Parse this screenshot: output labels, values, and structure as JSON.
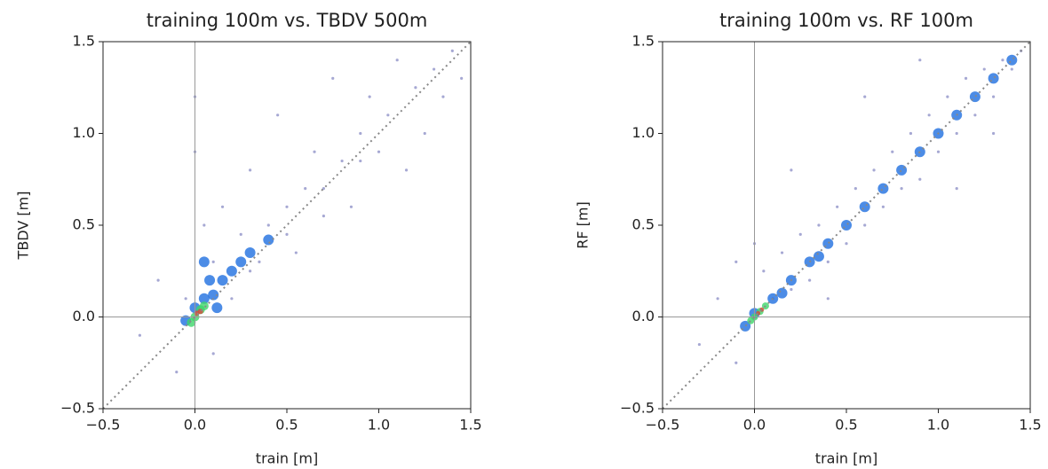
{
  "chart_data": [
    {
      "type": "scatter",
      "title": "training 100m vs. TBDV 500m",
      "xlabel": "train [m]",
      "ylabel": "TBDV [m]",
      "xlim": [
        -0.5,
        1.5
      ],
      "ylim": [
        -0.5,
        1.5
      ],
      "xticks": [
        {
          "value": -0.5,
          "label": "−0.5"
        },
        {
          "value": 0,
          "label": "0.0"
        },
        0.5,
        {
          "value": 1,
          "label": "1.0"
        },
        1.5
      ],
      "yticks": [
        {
          "value": -0.5,
          "label": "−0.5"
        },
        {
          "value": 0,
          "label": "0.0"
        },
        0.5,
        {
          "value": 1,
          "label": "1.0"
        },
        1.5
      ],
      "hline": 0,
      "vline": 0,
      "identity_line": true,
      "series": [
        {
          "color": "#3a3f9e",
          "marker_size": 1.6,
          "x": [
            -0.3,
            -0.2,
            -0.1,
            0,
            0,
            0.05,
            0.1,
            0.15,
            0.2,
            0.25,
            0.3,
            0.35,
            0.4,
            0.45,
            0.5,
            0.55,
            0.6,
            0.65,
            0.7,
            0.75,
            0.8,
            0.85,
            0.9,
            0.95,
            1.0,
            1.05,
            1.1,
            1.15,
            1.2,
            1.25,
            1.3,
            1.35,
            1.4,
            1.45,
            0.1,
            -0.05,
            0.3,
            0.5,
            0.7,
            0.9
          ],
          "values": [
            -0.1,
            0.2,
            -0.3,
            0.9,
            1.2,
            0.5,
            0.3,
            0.6,
            0.1,
            0.45,
            0.8,
            0.3,
            0.5,
            1.1,
            0.6,
            0.35,
            0.7,
            0.9,
            0.55,
            1.3,
            0.85,
            0.6,
            1.0,
            1.2,
            0.9,
            1.1,
            1.4,
            0.8,
            1.25,
            1.0,
            1.35,
            1.2,
            1.45,
            1.3,
            -0.2,
            0.1,
            0.25,
            0.45,
            0.7,
            0.85
          ]
        },
        {
          "color": "#1f6fe0",
          "marker_size": 6,
          "x": [
            0,
            0.05,
            0.1,
            0.15,
            0.2,
            0.25,
            -0.05,
            0.08,
            0.12,
            0.3,
            0.4,
            0.05
          ],
          "values": [
            0.05,
            0.1,
            0.12,
            0.2,
            0.25,
            0.3,
            -0.02,
            0.2,
            0.05,
            0.35,
            0.42,
            0.3
          ]
        },
        {
          "color": "#3ed66a",
          "marker_size": 5,
          "x": [
            0,
            0.03,
            -0.02,
            0.05
          ],
          "values": [
            0,
            0.04,
            -0.03,
            0.06
          ]
        },
        {
          "color": "#d9473a",
          "marker_size": 3,
          "x": [
            0.01,
            0.03
          ],
          "values": [
            0.02,
            0.03
          ]
        }
      ]
    },
    {
      "type": "scatter",
      "title": "training 100m vs. RF 100m",
      "xlabel": "train [m]",
      "ylabel": "RF [m]",
      "xlim": [
        -0.5,
        1.5
      ],
      "ylim": [
        -0.5,
        1.5
      ],
      "xticks": [
        {
          "value": -0.5,
          "label": "−0.5"
        },
        {
          "value": 0,
          "label": "0.0"
        },
        0.5,
        {
          "value": 1,
          "label": "1.0"
        },
        1.5
      ],
      "yticks": [
        {
          "value": -0.5,
          "label": "−0.5"
        },
        {
          "value": 0,
          "label": "0.0"
        },
        0.5,
        {
          "value": 1,
          "label": "1.0"
        },
        1.5
      ],
      "hline": 0,
      "vline": 0,
      "identity_line": true,
      "series": [
        {
          "color": "#3a3f9e",
          "marker_size": 1.6,
          "x": [
            -0.3,
            -0.2,
            -0.1,
            0,
            0.05,
            0.1,
            0.15,
            0.2,
            0.25,
            0.3,
            0.35,
            0.4,
            0.45,
            0.5,
            0.55,
            0.6,
            0.65,
            0.7,
            0.75,
            0.8,
            0.85,
            0.9,
            0.95,
            1.0,
            1.05,
            1.1,
            1.15,
            1.2,
            1.25,
            1.3,
            1.35,
            1.4,
            1.45,
            0.2,
            0.6,
            0.9,
            -0.1,
            0.4,
            1.1,
            1.3
          ],
          "values": [
            -0.15,
            0.1,
            -0.25,
            0.4,
            0.25,
            0.1,
            0.35,
            0.15,
            0.45,
            0.2,
            0.5,
            0.3,
            0.6,
            0.4,
            0.7,
            0.5,
            0.8,
            0.6,
            0.9,
            0.7,
            1.0,
            0.75,
            1.1,
            0.9,
            1.2,
            1.0,
            1.3,
            1.1,
            1.35,
            1.2,
            1.4,
            1.35,
            1.45,
            0.8,
            1.2,
            1.4,
            0.3,
            0.1,
            0.7,
            1.0
          ]
        },
        {
          "color": "#1f6fe0",
          "marker_size": 6,
          "x": [
            0,
            0.1,
            0.2,
            0.3,
            0.4,
            0.5,
            0.6,
            0.7,
            0.8,
            0.9,
            1.0,
            1.1,
            1.2,
            1.3,
            1.4,
            -0.05,
            0.15,
            0.35
          ],
          "values": [
            0.02,
            0.1,
            0.2,
            0.3,
            0.4,
            0.5,
            0.6,
            0.7,
            0.8,
            0.9,
            1.0,
            1.1,
            1.2,
            1.3,
            1.4,
            -0.05,
            0.13,
            0.33
          ]
        },
        {
          "color": "#3ed66a",
          "marker_size": 4,
          "x": [
            0,
            0.03,
            0.06,
            -0.02
          ],
          "values": [
            0,
            0.03,
            0.06,
            -0.02
          ]
        },
        {
          "color": "#d9473a",
          "marker_size": 2.5,
          "x": [
            0.02,
            0.04
          ],
          "values": [
            0.02,
            0.04
          ]
        }
      ]
    }
  ]
}
